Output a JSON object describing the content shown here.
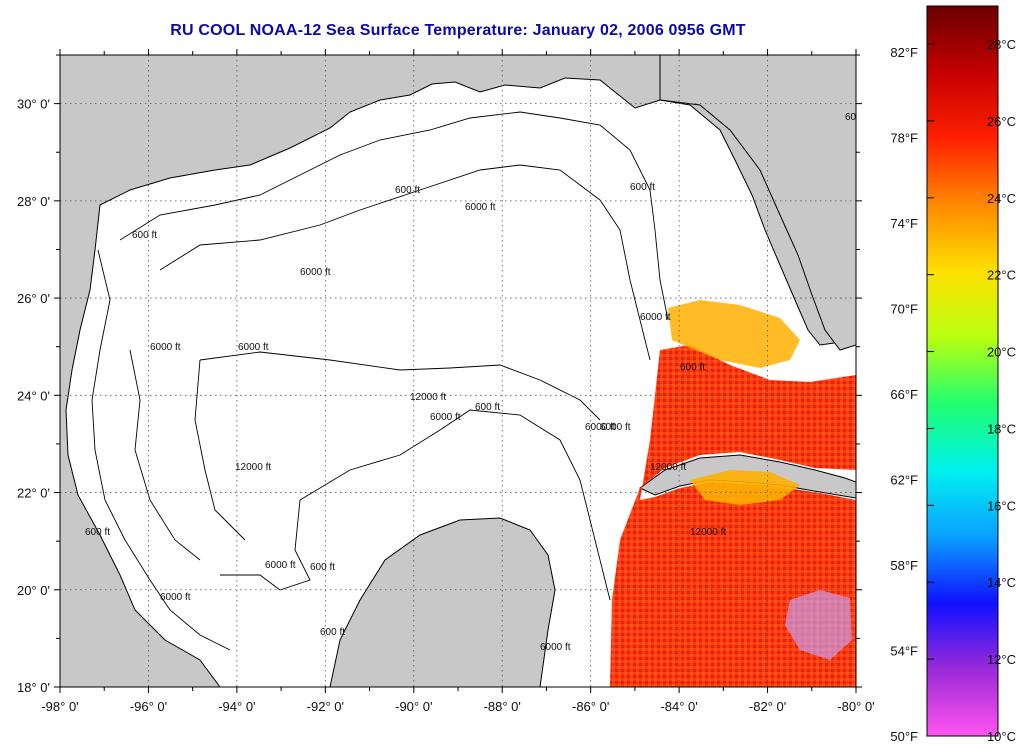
{
  "title": "RU COOL  NOAA-12  Sea Surface Temperature:  January 02, 2006 0956 GMT",
  "lon_labels": [
    "-98° 0'",
    "-96° 0'",
    "-94° 0'",
    "-92° 0'",
    "-90° 0'",
    "-88° 0'",
    "-86° 0'",
    "-84° 0'",
    "-82° 0'",
    "-80° 0'"
  ],
  "lat_labels": [
    "30° 0'",
    "28° 0'",
    "26° 0'",
    "24° 0'",
    "22° 0'",
    "20° 0'",
    "18° 0'"
  ],
  "colorbar": {
    "fahrenheit_labels": [
      "82°F",
      "78°F",
      "74°F",
      "70°F",
      "66°F",
      "62°F",
      "58°F",
      "54°F",
      "50°F"
    ],
    "celsius_labels": [
      "28°C",
      "26°C",
      "24°C",
      "22°C",
      "20°C",
      "18°C",
      "16°C",
      "14°C",
      "12°C",
      "10°C"
    ],
    "colors": [
      "#ff55ee",
      "#9b2ad8",
      "#1010ff",
      "#0aa0ff",
      "#00f0f0",
      "#20ff70",
      "#b8ff10",
      "#ffe000",
      "#ff8a00",
      "#ff2000",
      "#c40000",
      "#6a0000"
    ]
  },
  "contour_labels": [
    "600 ft",
    "6000 ft",
    "600 ft",
    "6000 ft",
    "6000 ft",
    "12000 ft",
    "600 ft",
    "6000 ft",
    "6000 ft",
    "12000 ft",
    "6000 ft",
    "600 ft",
    "6000 ft",
    "6000 ft",
    "12000 ft",
    "6000 ft",
    "600 ft",
    "600 ft",
    "6000 ft",
    "12000 ft",
    "600 ft",
    "600 ft",
    "6000 ft",
    "600 ft"
  ],
  "colors": {
    "land": "#c8c8c8",
    "ocean": "#ffffff",
    "title": "#0a0aa8",
    "sst_warm": "#ff3a10",
    "sst_yellow": "#ffb000"
  }
}
